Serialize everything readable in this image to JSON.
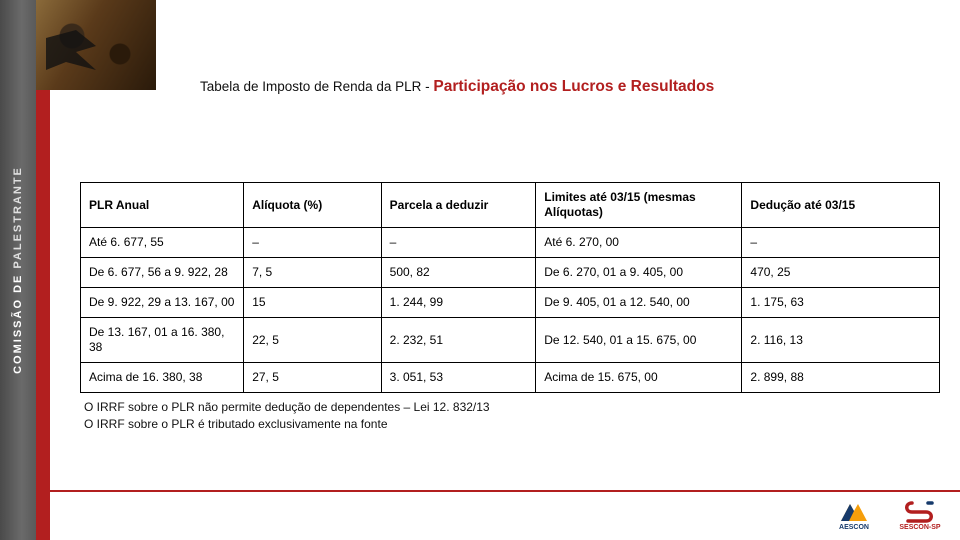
{
  "sidebar": {
    "label_prefix": "COMISSÃO DE ",
    "label_highlight": "PALESTRANTE"
  },
  "title": {
    "prefix": "Tabela de Imposto de Renda da PLR - ",
    "highlight": "Participação nos Lucros e Resultados",
    "prefix_color": "#111111",
    "highlight_color": "#b21f1f",
    "prefix_fontsize": 13.5,
    "highlight_fontsize": 15.5
  },
  "table": {
    "type": "table",
    "border_color": "#000000",
    "cell_fontsize": 12,
    "header_fontweight": "bold",
    "column_widths_pct": [
      19,
      16,
      18,
      24,
      23
    ],
    "columns": [
      "PLR Anual",
      "Alíquota (%)",
      "Parcela a deduzir",
      "Limites até 03/15 (mesmas Alíquotas)",
      "Dedução até 03/15"
    ],
    "rows": [
      [
        "Até 6. 677, 55",
        "–",
        "–",
        "Até 6. 270, 00",
        "–"
      ],
      [
        "De 6. 677, 56 a 9. 922, 28",
        "7, 5",
        "500, 82",
        "De 6. 270, 01 a 9. 405, 00",
        "470, 25"
      ],
      [
        "De 9. 922, 29 a 13. 167, 00",
        "15",
        "1. 244, 99",
        "De 9. 405, 01 a 12. 540, 00",
        "1. 175, 63"
      ],
      [
        "De 13. 167, 01 a 16. 380, 38",
        "22, 5",
        "2. 232, 51",
        "De 12. 540, 01 a 15. 675, 00",
        "2. 116, 13"
      ],
      [
        "Acima de 16. 380, 38",
        "27, 5",
        "3. 051, 53",
        "Acima de 15. 675, 00",
        "2. 899, 88"
      ]
    ]
  },
  "footnotes": [
    "O IRRF sobre o PLR não permite dedução de dependentes – Lei 12. 832/13",
    "O IRRF sobre o PLR  é tributado exclusivamente na fonte"
  ],
  "accent_color": "#b21f1f",
  "logos": {
    "aescon": {
      "label": "AESCON",
      "color": "#163a6b"
    },
    "sescon": {
      "label": "SESCON-SP",
      "color": "#b21f1f"
    }
  }
}
